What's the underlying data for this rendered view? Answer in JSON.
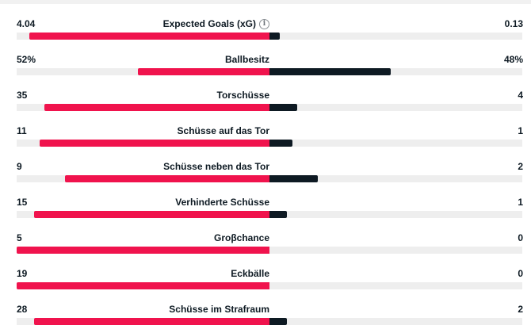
{
  "colors": {
    "home": "#f0134d",
    "away": "#0e1a23",
    "track": "#eeeeee"
  },
  "stats": [
    {
      "label": "Expected Goals (xG)",
      "home": "4.04",
      "away": "0.13",
      "home_frac": 0.95,
      "away_frac": 0.04,
      "info_icon": "info-icon"
    },
    {
      "label": "Ballbesitz",
      "home": "52%",
      "away": "48%",
      "home_frac": 0.52,
      "away_frac": 0.48
    },
    {
      "label": "Torschüsse",
      "home": "35",
      "away": "4",
      "home_frac": 0.89,
      "away_frac": 0.11
    },
    {
      "label": "Schüsse auf das Tor",
      "home": "11",
      "away": "1",
      "home_frac": 0.91,
      "away_frac": 0.09
    },
    {
      "label": "Schüsse neben das Tor",
      "home": "9",
      "away": "2",
      "home_frac": 0.81,
      "away_frac": 0.19
    },
    {
      "label": "Verhinderte Schüsse",
      "home": "15",
      "away": "1",
      "home_frac": 0.93,
      "away_frac": 0.07
    },
    {
      "label": "Groβchance",
      "home": "5",
      "away": "0",
      "home_frac": 1.0,
      "away_frac": 0.0
    },
    {
      "label": "Eckbälle",
      "home": "19",
      "away": "0",
      "home_frac": 1.0,
      "away_frac": 0.0
    },
    {
      "label": "Schüsse im Strafraum",
      "home": "28",
      "away": "2",
      "home_frac": 0.93,
      "away_frac": 0.07
    }
  ]
}
